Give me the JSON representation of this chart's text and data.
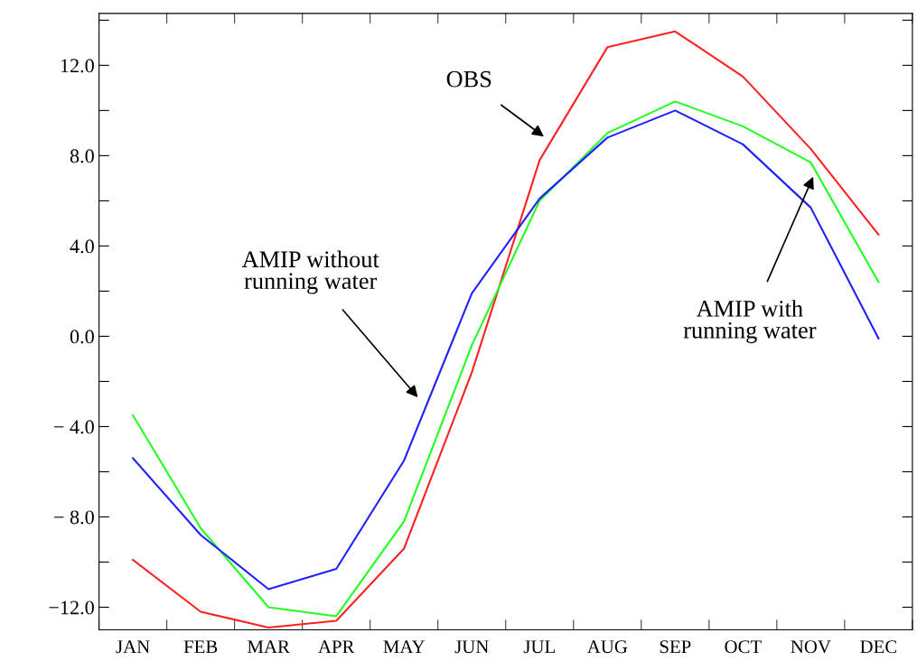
{
  "chart_data": {
    "type": "line",
    "categories": [
      "JAN",
      "FEB",
      "MAR",
      "APR",
      "MAY",
      "JUN",
      "JUL",
      "AUG",
      "SEP",
      "OCT",
      "NOV",
      "DEC"
    ],
    "series": [
      {
        "color": "#ff2020",
        "values": [
          -9.9,
          -12.2,
          -12.9,
          -12.6,
          -9.4,
          -1.6,
          7.8,
          12.8,
          13.5,
          11.5,
          8.3,
          4.5
        ]
      },
      {
        "color": "#20ff20",
        "values": [
          -3.5,
          -8.5,
          -12.0,
          -12.4,
          -8.2,
          -0.4,
          6.0,
          9.0,
          10.4,
          9.3,
          7.7,
          2.4
        ]
      },
      {
        "color": "#2020ff",
        "values": [
          -5.4,
          -8.8,
          -11.2,
          -10.3,
          -5.5,
          1.9,
          6.1,
          8.8,
          10.0,
          8.5,
          5.7,
          -0.1
        ]
      }
    ],
    "ylim": [
      -13.0,
      14.3
    ],
    "yticks": [
      {
        "value": -12,
        "label": "−12.0"
      },
      {
        "value": -10,
        "label": null
      },
      {
        "value": -8,
        "label": "− 8.0"
      },
      {
        "value": -6,
        "label": null
      },
      {
        "value": -4,
        "label": "− 4.0"
      },
      {
        "value": -2,
        "label": null
      },
      {
        "value": 0,
        "label": "0.0"
      },
      {
        "value": 2,
        "label": null
      },
      {
        "value": 4,
        "label": "4.0"
      },
      {
        "value": 6,
        "label": null
      },
      {
        "value": 8,
        "label": "8.0"
      },
      {
        "value": 10,
        "label": null
      },
      {
        "value": 12,
        "label": "12.0"
      },
      {
        "value": 14,
        "label": null
      }
    ],
    "annotations": [
      "OBS",
      "AMIP without\nrunning water",
      "AMIP with\nrunning water"
    ],
    "marker": "none",
    "line_style": "solid",
    "grid": false,
    "legend": false
  }
}
